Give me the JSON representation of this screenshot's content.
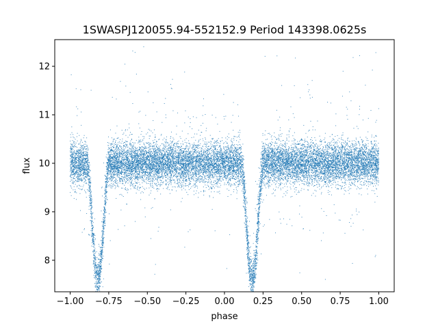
{
  "chart_data": {
    "type": "scatter",
    "title": "1SWASPJ120055.94-552152.9 Period 143398.0625s",
    "xlabel": "phase",
    "ylabel": "flux",
    "xlim": [
      -1.1,
      1.1
    ],
    "ylim": [
      7.35,
      12.55
    ],
    "xticks": [
      "−1.00",
      "−0.75",
      "−0.50",
      "−0.25",
      "0.00",
      "0.25",
      "0.50",
      "0.75",
      "1.00"
    ],
    "xtick_values": [
      -1.0,
      -0.75,
      -0.5,
      -0.25,
      0.0,
      0.25,
      0.5,
      0.75,
      1.0
    ],
    "yticks": [
      "8",
      "9",
      "10",
      "11",
      "12"
    ],
    "ytick_values": [
      8,
      9,
      10,
      11,
      12
    ],
    "grid": false,
    "series": [
      {
        "marker_color": "#1f77b4",
        "marker_size": 1,
        "phase_range": [
          -1.0,
          1.0
        ],
        "baseline_flux": 10.0,
        "baseline_scatter": 0.22,
        "eclipses": [
          {
            "center_phase": -0.82,
            "min_flux": 7.6,
            "half_width": 0.07
          },
          {
            "center_phase": 0.18,
            "min_flux": 7.6,
            "half_width": 0.07
          }
        ],
        "approx_point_count": 16000
      }
    ]
  }
}
